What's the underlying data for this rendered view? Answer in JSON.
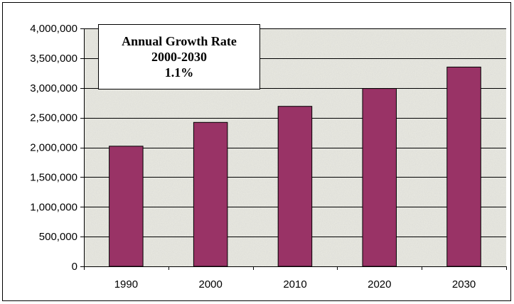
{
  "chart_data": {
    "type": "bar",
    "title": "",
    "xlabel": "",
    "ylabel": "",
    "categories": [
      "1990",
      "2000",
      "2010",
      "2020",
      "2030"
    ],
    "values": [
      2020000,
      2420000,
      2690000,
      2990000,
      3350000
    ],
    "ylim": [
      0,
      4000000
    ],
    "yticks": [
      0,
      500000,
      1000000,
      1500000,
      2000000,
      2500000,
      3000000,
      3500000,
      4000000
    ],
    "ytick_labels": [
      "0",
      "500,000",
      "1,000,000",
      "1,500,000",
      "2,000,000",
      "2,500,000",
      "3,000,000",
      "3,500,000",
      "4,000,000"
    ],
    "grid": true,
    "legend": "none",
    "annotation": {
      "line1": "Annual Growth Rate",
      "line2": "2000-2030",
      "line3": "1.1%"
    },
    "colors": {
      "bar": "#993366",
      "bar_stroke": "#000000",
      "plot_background": "#e9e9e2",
      "gridline": "#000000"
    }
  }
}
